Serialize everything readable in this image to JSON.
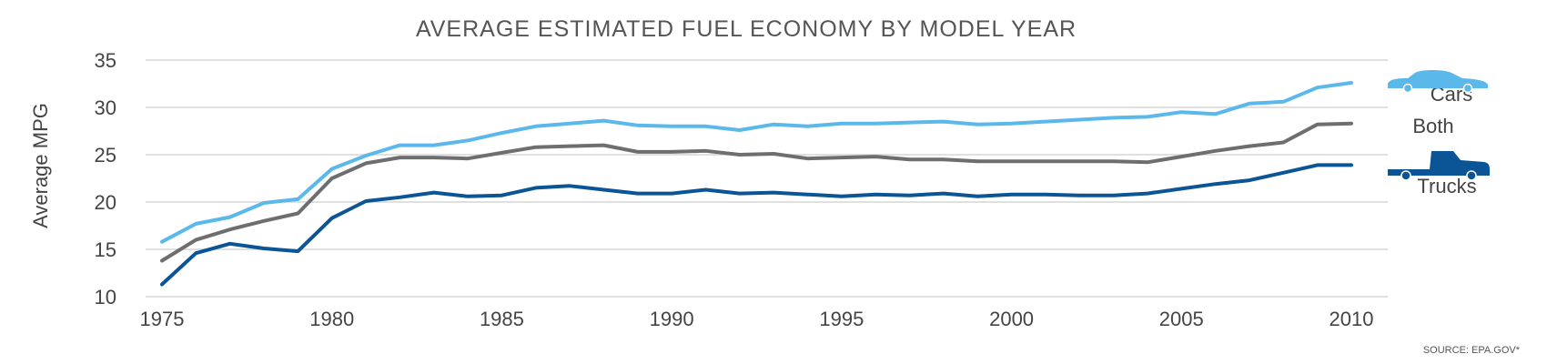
{
  "chart_data": {
    "type": "line",
    "title": "AVERAGE ESTIMATED FUEL ECONOMY BY MODEL YEAR",
    "ylabel": "Average MPG",
    "xlabel": "",
    "ylim": [
      10,
      35
    ],
    "xlim": [
      1975,
      2010
    ],
    "y_ticks": [
      35,
      30,
      25,
      20,
      15,
      10
    ],
    "x_ticks": [
      1975,
      1980,
      1985,
      1990,
      1995,
      2000,
      2005,
      2010
    ],
    "grid": true,
    "source": "SOURCE: EPA.GOV*",
    "x": [
      1975,
      1976,
      1977,
      1978,
      1979,
      1980,
      1981,
      1982,
      1983,
      1984,
      1985,
      1986,
      1987,
      1988,
      1989,
      1990,
      1991,
      1992,
      1993,
      1994,
      1995,
      1996,
      1997,
      1998,
      1999,
      2000,
      2001,
      2002,
      2003,
      2004,
      2005,
      2006,
      2007,
      2008,
      2009,
      2010
    ],
    "series": [
      {
        "name": "Cars",
        "color": "#5bb8ea",
        "icon": "car-icon",
        "values": [
          15.8,
          17.7,
          18.4,
          19.9,
          20.3,
          23.5,
          24.9,
          26.0,
          26.0,
          26.5,
          27.3,
          28.0,
          28.3,
          28.6,
          28.1,
          28.0,
          28.0,
          27.6,
          28.2,
          28.0,
          28.3,
          28.3,
          28.4,
          28.5,
          28.2,
          28.3,
          28.5,
          28.7,
          28.9,
          29.0,
          29.5,
          29.3,
          30.4,
          30.6,
          32.1,
          32.6
        ]
      },
      {
        "name": "Both",
        "color": "#6d6e70",
        "icon": "",
        "values": [
          13.8,
          16.0,
          17.1,
          18.0,
          18.8,
          22.5,
          24.1,
          24.7,
          24.7,
          24.6,
          25.2,
          25.8,
          25.9,
          26.0,
          25.3,
          25.3,
          25.4,
          25.0,
          25.1,
          24.6,
          24.7,
          24.8,
          24.5,
          24.5,
          24.3,
          24.3,
          24.3,
          24.3,
          24.3,
          24.2,
          24.8,
          25.4,
          25.9,
          26.3,
          28.2,
          28.3
        ]
      },
      {
        "name": "Trucks",
        "color": "#0b5597",
        "icon": "truck-icon",
        "values": [
          11.3,
          14.6,
          15.6,
          15.1,
          14.8,
          18.3,
          20.1,
          20.5,
          21.0,
          20.6,
          20.7,
          21.5,
          21.7,
          21.3,
          20.9,
          20.9,
          21.3,
          20.9,
          21.0,
          20.8,
          20.6,
          20.8,
          20.7,
          20.9,
          20.6,
          20.8,
          20.8,
          20.7,
          20.7,
          20.9,
          21.4,
          21.9,
          22.3,
          23.1,
          23.9,
          23.9
        ]
      }
    ]
  }
}
